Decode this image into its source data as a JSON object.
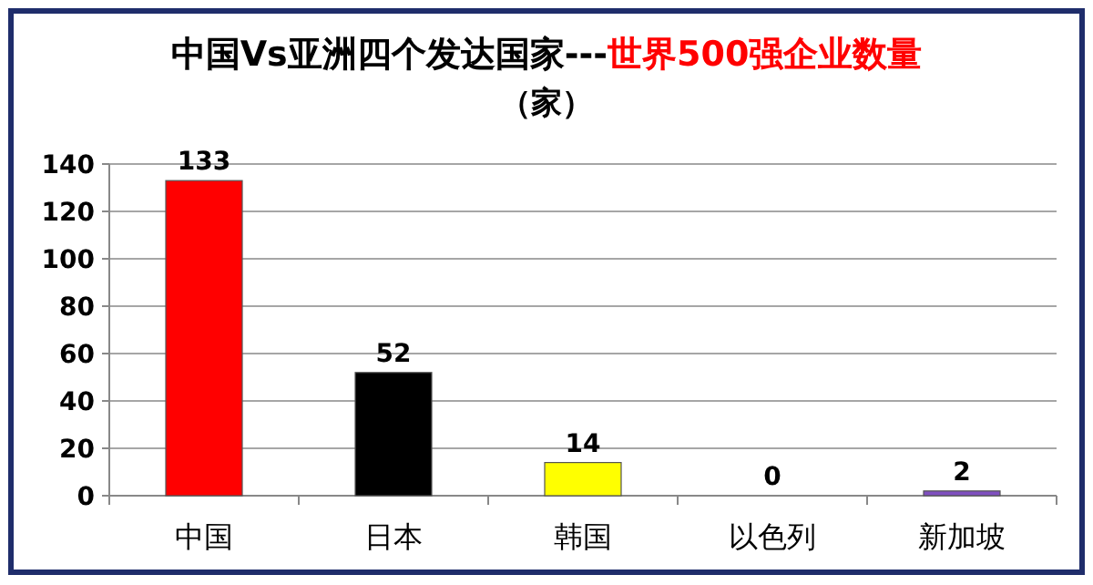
{
  "chart_data": {
    "type": "bar",
    "title": "中国Vs亚洲四个发达国家---",
    "subtitle": "世界500强企业数量",
    "annotations": [
      "（家）"
    ],
    "categories": [
      "中国",
      "日本",
      "韩国",
      "以色列",
      "新加坡"
    ],
    "values": [
      133,
      52,
      14,
      0,
      2
    ],
    "colors": [
      "#ff0000",
      "#000000",
      "#ffff00",
      "#1f3864",
      "#7f4fbf"
    ],
    "ylim": [
      0,
      140
    ],
    "yticks": [
      0,
      20,
      40,
      60,
      80,
      100,
      120,
      140
    ],
    "grid": "y",
    "data_labels": true
  }
}
